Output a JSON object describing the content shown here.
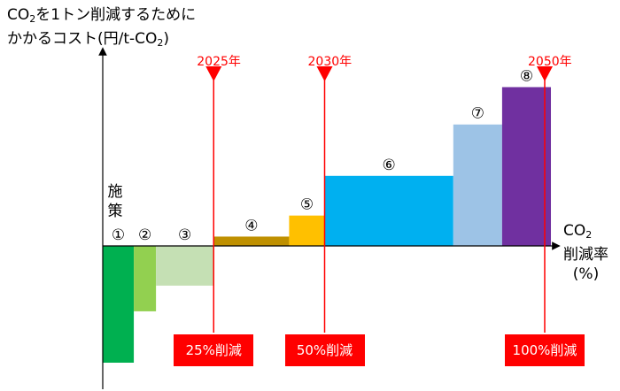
{
  "y_axis_title": {
    "line1_prefix": "CO",
    "line1_sub": "2",
    "line1_suffix": "を1トン削減するために",
    "line2_prefix": "かかるコスト(円/t-CO",
    "line2_sub": "2",
    "line2_suffix": ")"
  },
  "x_axis_title": {
    "line1_prefix": "CO",
    "line1_sub": "2",
    "line2": "削減率",
    "line3": "(%)"
  },
  "measures_label": "施策",
  "colors": {
    "marker": "#ff0000",
    "axis": "#000000"
  },
  "chart_data": {
    "type": "bar",
    "subtype": "marginal-abatement-cost-curve",
    "x_axis_label": "CO2 削減率 (%)",
    "y_axis_label": "CO2を1トン削減するためにかかるコスト(円/t-CO2)",
    "xlim": [
      0,
      100
    ],
    "ylim": [
      -100,
      140
    ],
    "grid": false,
    "bars": [
      {
        "label": "①",
        "x_start": 0,
        "x_end": 7,
        "value": -100,
        "color": "#00b050"
      },
      {
        "label": "②",
        "x_start": 7,
        "x_end": 12,
        "value": -56,
        "color": "#92d050"
      },
      {
        "label": "③",
        "x_start": 12,
        "x_end": 25,
        "value": -34,
        "color": "#c5e0b4"
      },
      {
        "label": "④",
        "x_start": 25,
        "x_end": 42,
        "value": 8,
        "color": "#bf9000"
      },
      {
        "label": "⑤",
        "x_start": 42,
        "x_end": 50,
        "value": 26,
        "color": "#ffc000"
      },
      {
        "label": "⑥",
        "x_start": 50,
        "x_end": 79,
        "value": 60,
        "color": "#00b0f0"
      },
      {
        "label": "⑦",
        "x_start": 79,
        "x_end": 90,
        "value": 104,
        "color": "#9dc3e6"
      },
      {
        "label": "⑧",
        "x_start": 90,
        "x_end": 101,
        "value": 136,
        "color": "#7030a0"
      }
    ],
    "markers": [
      {
        "x": 25,
        "year": "2025年",
        "reduction": "25%削減"
      },
      {
        "x": 50,
        "year": "2030年",
        "reduction": "50%削減"
      },
      {
        "x": 100,
        "year": "2050年",
        "reduction": "100%削減"
      }
    ]
  }
}
